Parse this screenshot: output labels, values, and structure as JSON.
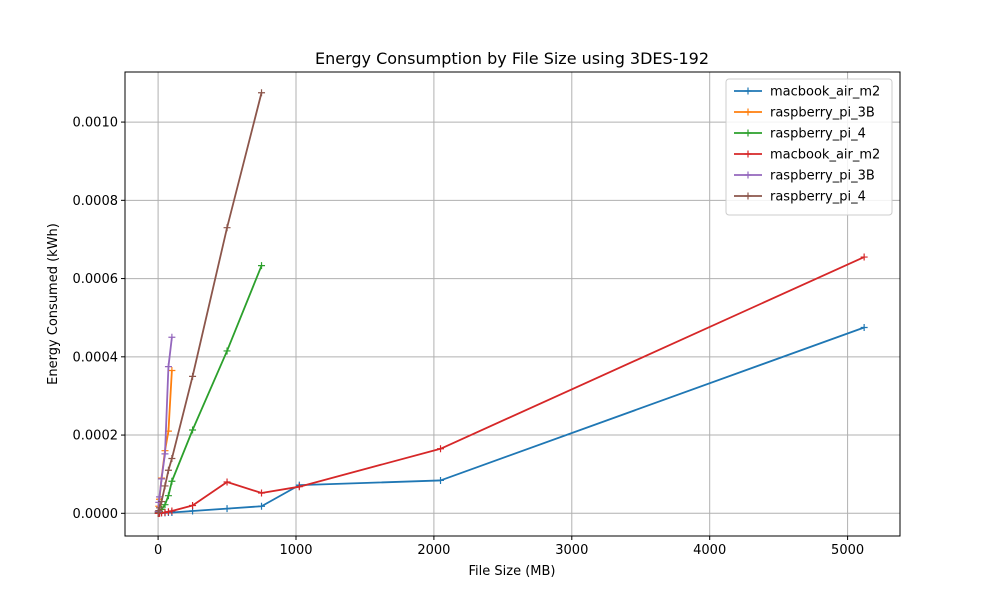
{
  "chart_data": {
    "type": "line",
    "title": "Energy Consumption by File Size using 3DES-192",
    "xlabel": "File Size (MB)",
    "ylabel": "Energy Consumed (kWh)",
    "xlim": [
      -240,
      5380
    ],
    "ylim": [
      -5.8e-05,
      0.001128
    ],
    "xticks": [
      0,
      1000,
      2000,
      3000,
      4000,
      5000
    ],
    "xtick_labels": [
      "0",
      "1000",
      "2000",
      "3000",
      "4000",
      "5000"
    ],
    "yticks": [
      0,
      0.0002,
      0.0004,
      0.0006,
      0.0008,
      0.001
    ],
    "ytick_labels": [
      "0.0000",
      "0.0002",
      "0.0004",
      "0.0006",
      "0.0008",
      "0.0010"
    ],
    "grid": true,
    "legend_position": "top-right",
    "marker": "+",
    "series": [
      {
        "name": "macbook_air_m2",
        "color": "#1f77b4",
        "x": [
          1,
          5,
          10,
          25,
          50,
          75,
          100,
          250,
          500,
          750,
          1024,
          2048,
          5120
        ],
        "y": [
          0.0,
          0.0,
          0.0,
          1e-06,
          1e-06,
          2e-06,
          2e-06,
          6e-06,
          1.2e-05,
          1.8e-05,
          7.2e-05,
          8.4e-05,
          0.000475
        ]
      },
      {
        "name": "raspberry_pi_3B",
        "color": "#ff7f0e",
        "x": [
          1,
          5,
          10,
          25,
          50,
          75,
          100
        ],
        "y": [
          4e-06,
          1.8e-05,
          3.6e-05,
          9e-05,
          0.00016,
          0.00021,
          0.000365
        ]
      },
      {
        "name": "raspberry_pi_4",
        "color": "#2ca02c",
        "x": [
          1,
          5,
          10,
          25,
          50,
          75,
          100,
          250,
          500,
          750
        ],
        "y": [
          0.0,
          3e-06,
          5e-06,
          1e-05,
          2.2e-05,
          4.5e-05,
          8.2e-05,
          0.000213,
          0.000415,
          0.000633
        ]
      },
      {
        "name": "macbook_air_m2",
        "color": "#d62728",
        "x": [
          1,
          5,
          10,
          25,
          50,
          75,
          100,
          250,
          500,
          750,
          1024,
          2048,
          5120
        ],
        "y": [
          0.0,
          0.0,
          0.0,
          1e-06,
          2e-06,
          4e-06,
          6e-06,
          2e-05,
          8e-05,
          5.2e-05,
          6.8e-05,
          0.000165,
          0.000655
        ]
      },
      {
        "name": "raspberry_pi_3B",
        "color": "#9467bd",
        "x": [
          1,
          5,
          10,
          25,
          50,
          75,
          100
        ],
        "y": [
          5e-06,
          2.8e-05,
          4.2e-05,
          8.8e-05,
          0.000152,
          0.000375,
          0.00045
        ]
      },
      {
        "name": "raspberry_pi_4",
        "color": "#8c564b",
        "x": [
          1,
          5,
          10,
          25,
          50,
          75,
          100,
          250,
          500,
          750
        ],
        "y": [
          2e-06,
          7e-06,
          1.4e-05,
          3e-05,
          7e-05,
          0.00011,
          0.00014,
          0.00035,
          0.00073,
          0.001075
        ]
      }
    ]
  }
}
